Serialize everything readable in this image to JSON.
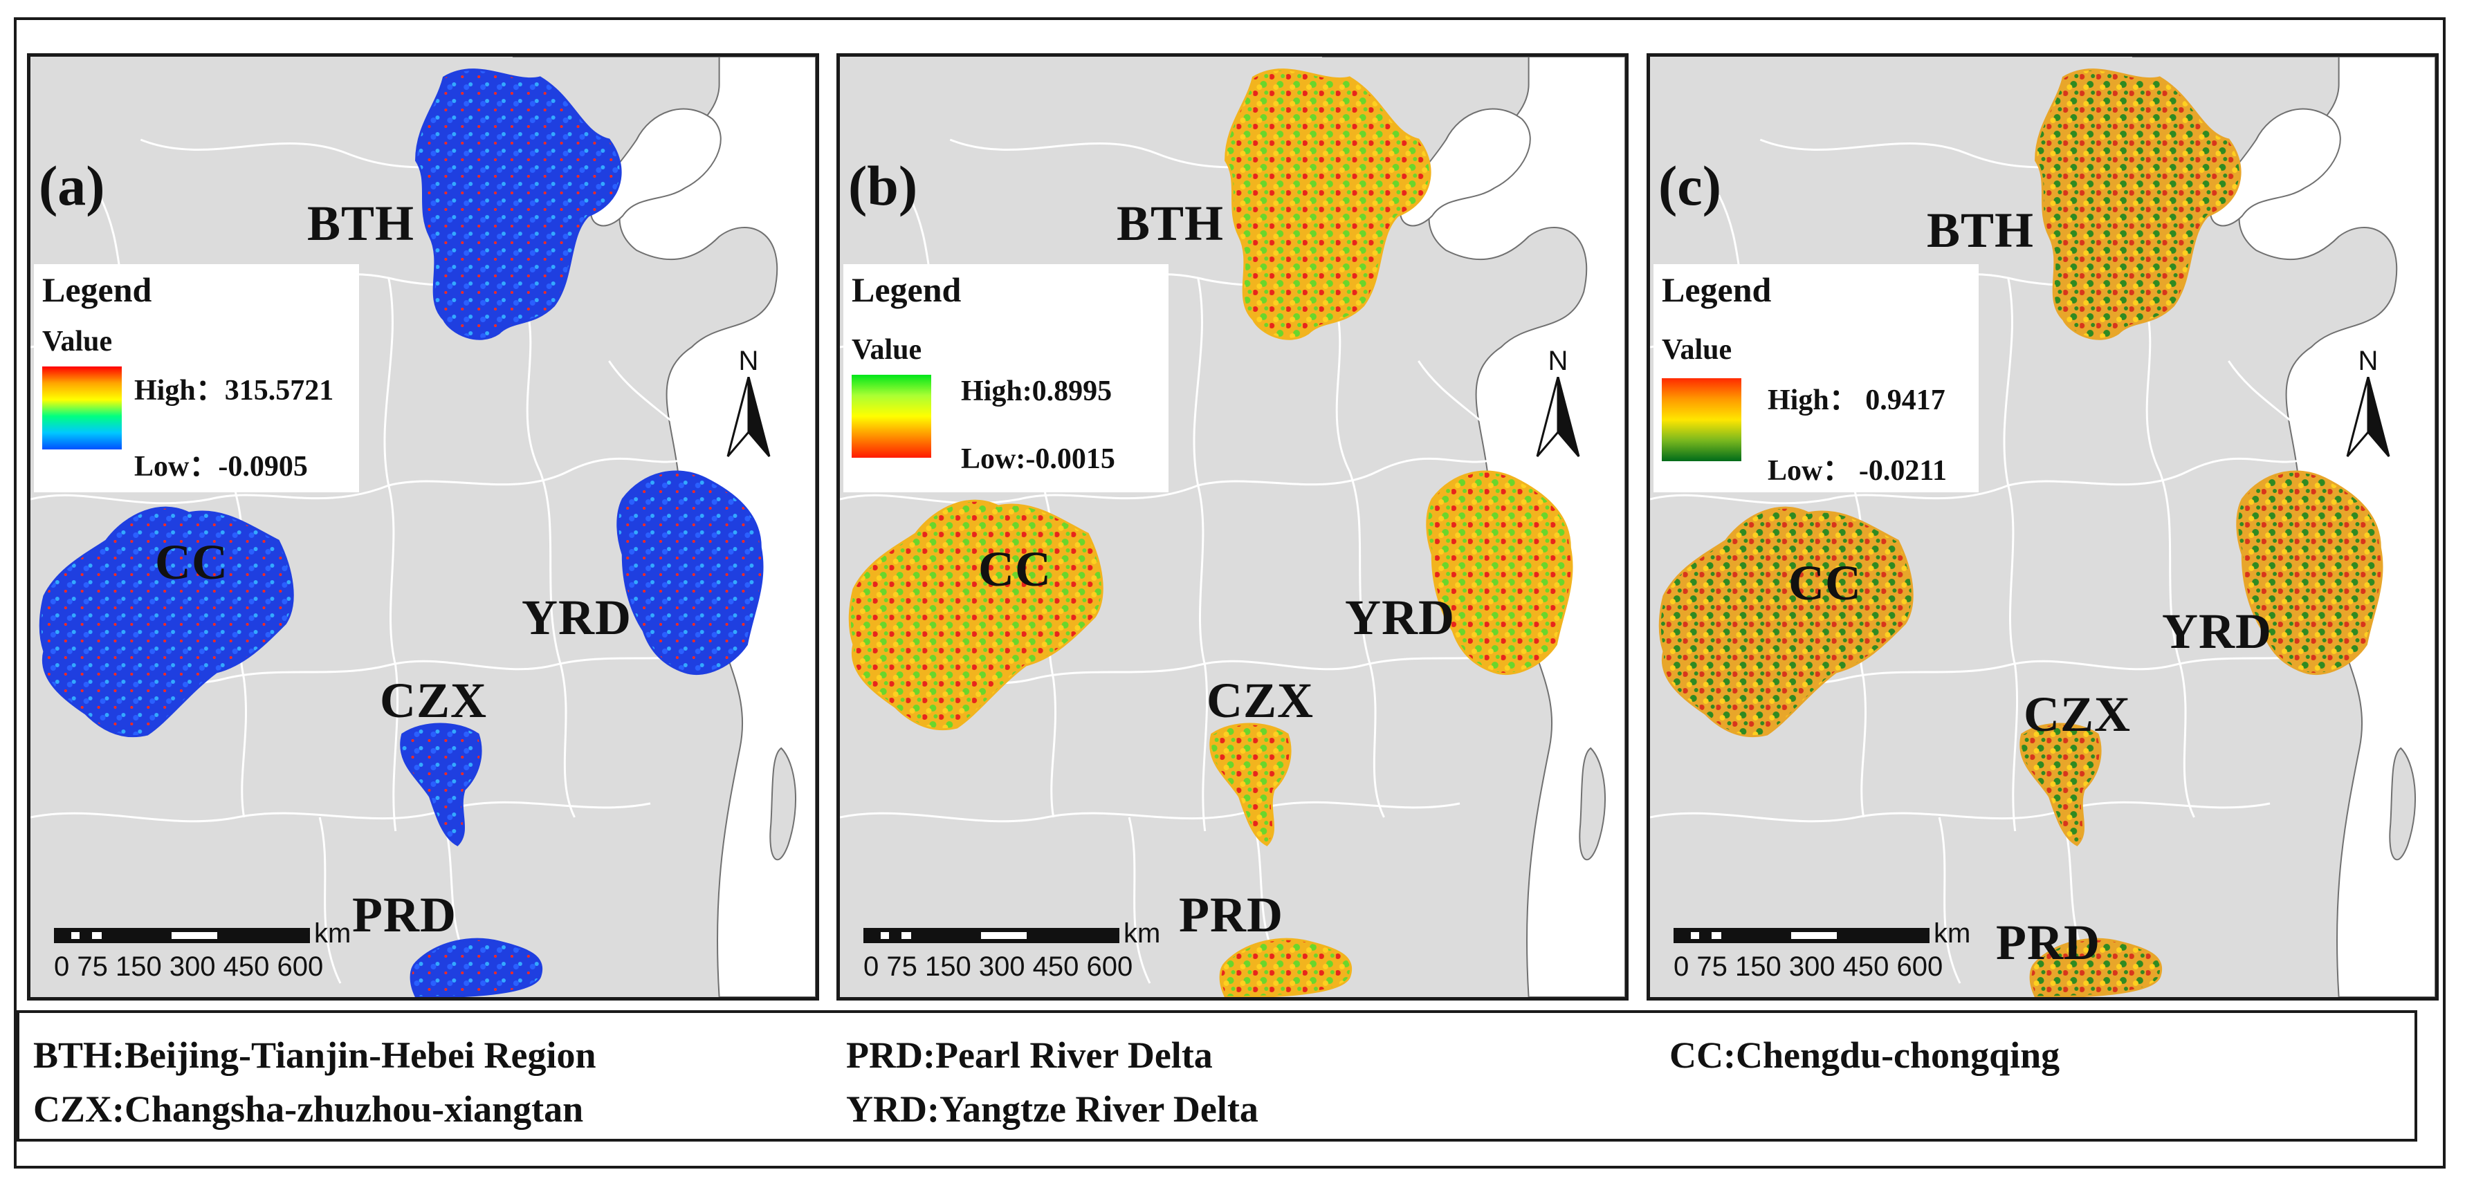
{
  "panels": [
    {
      "label": "(a)",
      "legend": {
        "title": "Legend",
        "value_label": "Value",
        "high": "High：315.5721",
        "low": "Low：-0.0905",
        "ramp": [
          "#ff0000",
          "#ffa500",
          "#ffff00",
          "#00ff80",
          "#00c8ff",
          "#0050ff"
        ]
      },
      "regions": {
        "BTH": "BTH",
        "CC": "CC",
        "YRD": "YRD",
        "CZX": "CZX",
        "PRD": "PRD"
      },
      "fill_colors": {
        "base": "#1f3fe0",
        "hot": "#ff2a1a"
      }
    },
    {
      "label": "(b)",
      "legend": {
        "title": "Legend",
        "value_label": "Value",
        "high": "High:0.8995",
        "low": "Low:-0.0015",
        "ramp": [
          "#00e61a",
          "#aaff33",
          "#ffff00",
          "#ff8c00",
          "#ff1a00"
        ]
      },
      "regions": {
        "BTH": "BTH",
        "CC": "CC",
        "YRD": "YRD",
        "CZX": "CZX",
        "PRD": "PRD"
      },
      "fill_colors": {
        "base": "#f2b41e",
        "hot": "#e8251c",
        "green": "#6ad62c"
      }
    },
    {
      "label": "(c)",
      "legend": {
        "title": "Legend",
        "value_label": "Value",
        "high": "High： 0.9417",
        "low": "Low： -0.0211",
        "ramp": [
          "#ff2a00",
          "#ff9900",
          "#ffe600",
          "#7ab81e",
          "#006b1a"
        ]
      },
      "regions": {
        "BTH": "BTH",
        "CC": "CC",
        "YRD": "YRD",
        "CZX": "CZX",
        "PRD": "PRD"
      },
      "fill_colors": {
        "base": "#e8a62a",
        "hot": "#d8351c",
        "green": "#2f8a22"
      }
    }
  ],
  "north_arrow": {
    "letter": "N"
  },
  "scale": {
    "unit": "km",
    "ticks": "0 75 150 300 450 600"
  },
  "abbreviations": {
    "bth": "BTH:Beijing-Tianjin-Hebei Region",
    "czx": "CZX:Changsha-zhuzhou-xiangtan",
    "prd": "PRD:Pearl River Delta",
    "yrd": "YRD:Yangtze River Delta",
    "cc": "CC:Chengdu-chongqing"
  }
}
